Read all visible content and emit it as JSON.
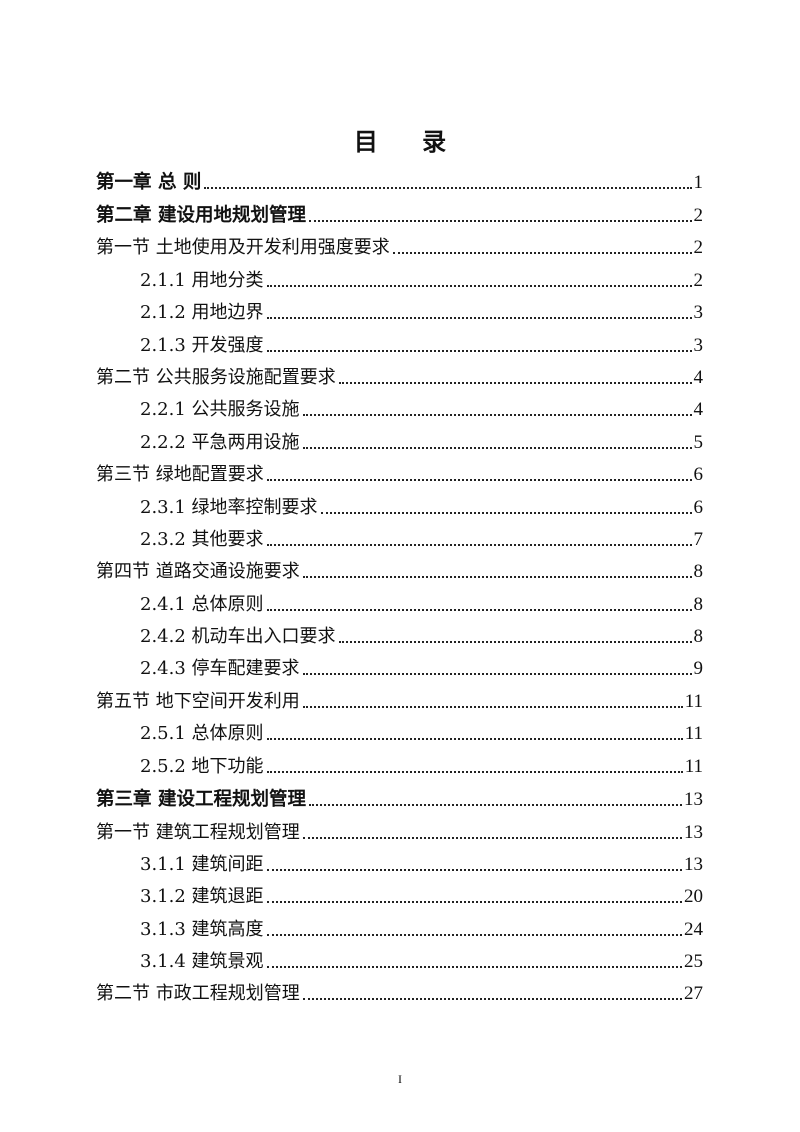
{
  "title": "目 录",
  "entries": [
    {
      "level": "chapter",
      "label": "第一章 总 则",
      "page": "1"
    },
    {
      "level": "chapter",
      "label": "第二章 建设用地规划管理",
      "page": "2"
    },
    {
      "level": "section",
      "label": "第一节 土地使用及开发利用强度要求",
      "page": "2"
    },
    {
      "level": "sub",
      "label": "2.1.1 用地分类",
      "page": "2"
    },
    {
      "level": "sub",
      "label": "2.1.2 用地边界",
      "page": "3"
    },
    {
      "level": "sub",
      "label": "2.1.3 开发强度",
      "page": "3"
    },
    {
      "level": "section",
      "label": "第二节 公共服务设施配置要求",
      "page": "4"
    },
    {
      "level": "sub",
      "label": "2.2.1 公共服务设施",
      "page": "4"
    },
    {
      "level": "sub",
      "label": "2.2.2 平急两用设施",
      "page": "5"
    },
    {
      "level": "section",
      "label": "第三节 绿地配置要求",
      "page": "6"
    },
    {
      "level": "sub",
      "label": "2.3.1 绿地率控制要求",
      "page": "6"
    },
    {
      "level": "sub",
      "label": "2.3.2 其他要求",
      "page": "7"
    },
    {
      "level": "section",
      "label": "第四节 道路交通设施要求",
      "page": "8"
    },
    {
      "level": "sub",
      "label": "2.4.1 总体原则",
      "page": "8"
    },
    {
      "level": "sub",
      "label": "2.4.2 机动车出入口要求",
      "page": "8"
    },
    {
      "level": "sub",
      "label": "2.4.3 停车配建要求",
      "page": "9"
    },
    {
      "level": "section",
      "label": "第五节 地下空间开发利用",
      "page": "11"
    },
    {
      "level": "sub",
      "label": "2.5.1 总体原则",
      "page": "11"
    },
    {
      "level": "sub",
      "label": "2.5.2 地下功能",
      "page": "11"
    },
    {
      "level": "chapter",
      "label": "第三章 建设工程规划管理",
      "page": "13"
    },
    {
      "level": "section",
      "label": "第一节 建筑工程规划管理",
      "page": "13"
    },
    {
      "level": "sub",
      "label": "3.1.1 建筑间距",
      "page": "13"
    },
    {
      "level": "sub",
      "label": "3.1.2 建筑退距",
      "page": "20"
    },
    {
      "level": "sub",
      "label": "3.1.3 建筑高度",
      "page": "24"
    },
    {
      "level": "sub",
      "label": "3.1.4 建筑景观",
      "page": "25"
    },
    {
      "level": "section",
      "label": "第二节 市政工程规划管理",
      "page": "27"
    }
  ],
  "footer": {
    "page_number": "I"
  }
}
